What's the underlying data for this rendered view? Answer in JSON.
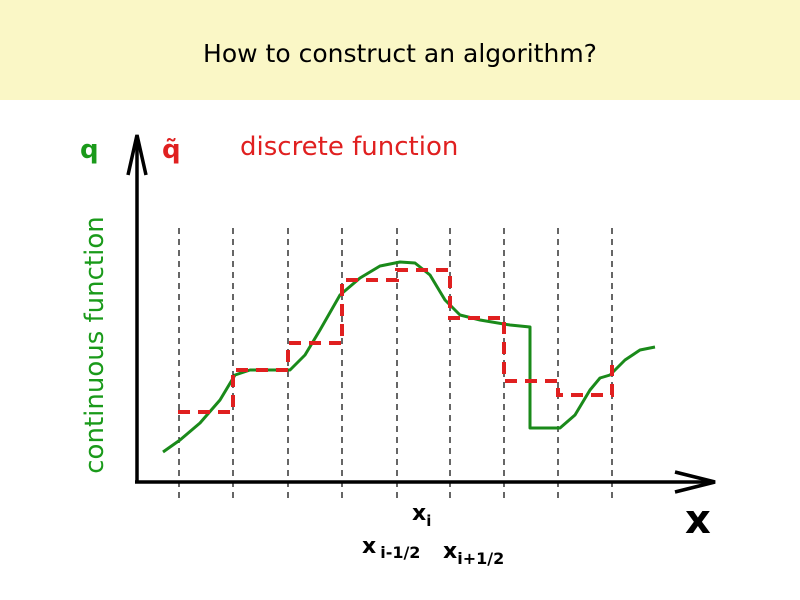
{
  "header": {
    "title": "How to construct an algorithm?"
  },
  "labels": {
    "continuous_symbol": "q",
    "discrete_symbol": "q̃",
    "discrete_name": "discrete function",
    "continuous_name": "continuous function",
    "axis_x": "x",
    "x_i": {
      "base": "x",
      "sub": "i"
    },
    "x_left": {
      "base": "x",
      "sub": "i-1/2"
    },
    "x_right": {
      "base": "x",
      "sub": "i+1/2"
    }
  }
}
